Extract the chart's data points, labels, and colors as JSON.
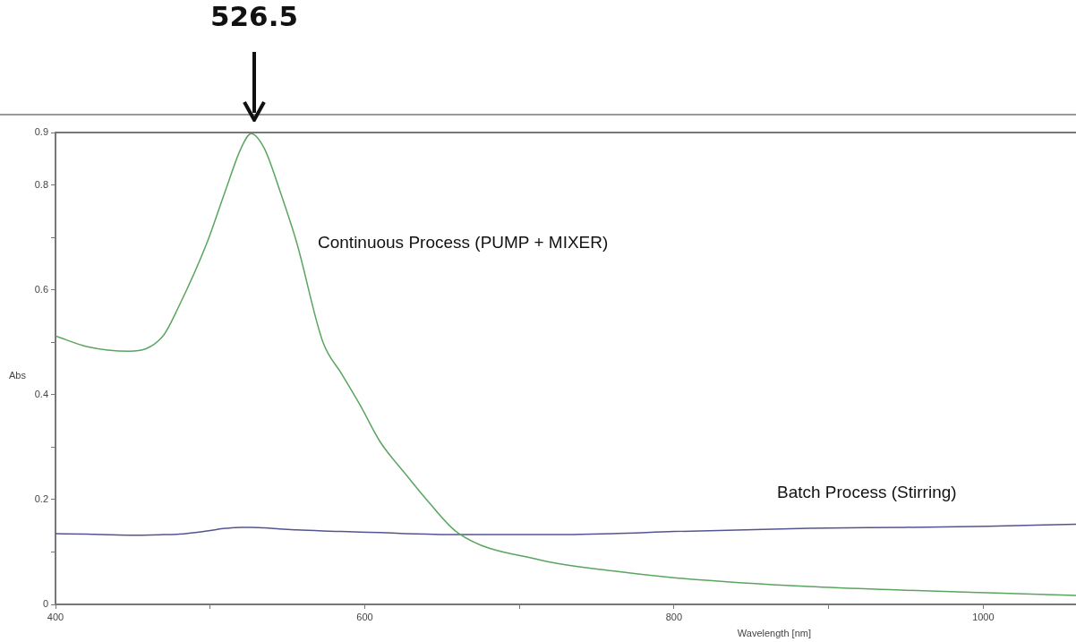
{
  "chart_data": {
    "type": "line",
    "xlabel": "Wavelength [nm]",
    "ylabel": "Abs",
    "x": [
      400,
      420,
      448,
      469,
      480,
      498,
      510,
      520,
      526.5,
      535,
      545,
      556,
      573,
      585,
      597,
      610,
      626,
      640,
      660,
      713,
      760,
      800,
      887,
      950,
      1003,
      1060
    ],
    "series": [
      {
        "name": "Continuous Process (PUMP + MIXER)",
        "color": "#5aa55f",
        "values": [
          0.512,
          0.492,
          0.483,
          0.51,
          0.57,
          0.69,
          0.79,
          0.87,
          0.898,
          0.87,
          0.79,
          0.69,
          0.5,
          0.44,
          0.38,
          0.31,
          0.25,
          0.2,
          0.137,
          0.085,
          0.064,
          0.051,
          0.034,
          0.027,
          0.022,
          0.017
        ]
      },
      {
        "name": "Batch Process (Stirring)",
        "color": "#545491",
        "values": [
          0.135,
          0.134,
          0.132,
          0.133,
          0.134,
          0.14,
          0.145,
          0.147,
          0.147,
          0.146,
          0.144,
          0.142,
          0.14,
          0.139,
          0.138,
          0.137,
          0.135,
          0.134,
          0.133,
          0.133,
          0.135,
          0.139,
          0.145,
          0.147,
          0.149,
          0.153
        ]
      }
    ],
    "xlim": [
      400,
      1060
    ],
    "xticks": [
      400,
      {
        "value": 500,
        "label": null
      },
      600,
      {
        "value": 700,
        "label": null
      },
      800,
      {
        "value": 900,
        "label": null
      },
      1000
    ],
    "ylim": [
      0,
      0.9
    ],
    "yticks": [
      0,
      {
        "value": 0.1,
        "label": null
      },
      0.2,
      {
        "value": 0.3,
        "label": null
      },
      0.4,
      {
        "value": 0.5,
        "label": null
      },
      0.6,
      {
        "value": 0.7,
        "label": null
      },
      0.8,
      0.9
    ],
    "annotations": [
      "526.5"
    ],
    "grid": false,
    "legend": false,
    "marker": "none",
    "line_style": "solid"
  }
}
